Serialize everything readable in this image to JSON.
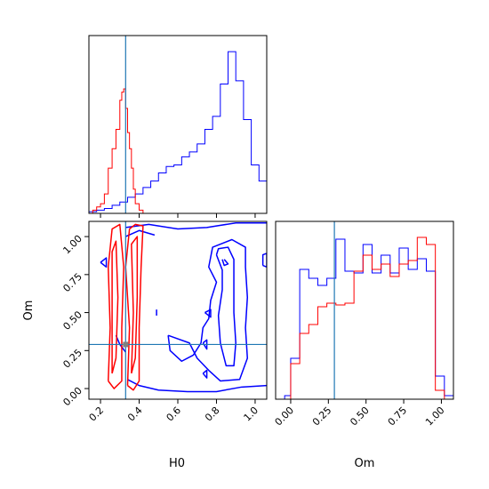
{
  "chart_data": {
    "type": "corner",
    "parameters": [
      "H0",
      "Om"
    ],
    "truths": {
      "H0": 0.33,
      "Om": 0.29
    },
    "truth_color": "#1f77b4",
    "series_colors": {
      "blue": "#0000ff",
      "red": "#ff0000"
    },
    "panels": {
      "hist_h0": {
        "xlim": [
          0.14,
          1.06
        ],
        "ylim": [
          0,
          1.1
        ],
        "series": [
          {
            "color": "#0000ff",
            "edges": [
              0.14,
              0.18,
              0.22,
              0.26,
              0.3,
              0.34,
              0.38,
              0.42,
              0.46,
              0.5,
              0.54,
              0.58,
              0.62,
              0.66,
              0.7,
              0.74,
              0.78,
              0.82,
              0.86,
              0.9,
              0.94,
              0.98,
              1.02,
              1.06
            ],
            "counts": [
              0.01,
              0.02,
              0.03,
              0.05,
              0.07,
              0.1,
              0.12,
              0.16,
              0.2,
              0.25,
              0.29,
              0.3,
              0.35,
              0.38,
              0.43,
              0.52,
              0.6,
              0.8,
              1.0,
              0.82,
              0.58,
              0.3,
              0.2
            ]
          },
          {
            "color": "#ff0000",
            "edges": [
              0.14,
              0.16,
              0.18,
              0.2,
              0.22,
              0.24,
              0.26,
              0.28,
              0.3,
              0.31,
              0.32,
              0.33,
              0.34,
              0.35,
              0.36,
              0.37,
              0.38,
              0.4,
              0.42,
              0.44
            ],
            "counts": [
              0.0,
              0.02,
              0.04,
              0.06,
              0.12,
              0.28,
              0.4,
              0.52,
              0.7,
              0.75,
              0.77,
              0.65,
              0.5,
              0.4,
              0.28,
              0.15,
              0.06,
              0.02,
              0.0
            ]
          }
        ]
      },
      "hist_om": {
        "xlim": [
          -0.1,
          1.08
        ],
        "ylim": [
          0,
          1.0
        ],
        "xticks": [
          0.0,
          0.25,
          0.5,
          0.75,
          1.0
        ],
        "xtick_labels": [
          "0.00",
          "0.25",
          "0.50",
          "0.75",
          "1.00"
        ],
        "series": [
          {
            "color": "#0000ff",
            "edges": [
              -0.04,
              0.0,
              0.06,
              0.12,
              0.18,
              0.24,
              0.3,
              0.36,
              0.42,
              0.48,
              0.54,
              0.6,
              0.66,
              0.72,
              0.78,
              0.84,
              0.9,
              0.96,
              1.02,
              1.08
            ],
            "counts": [
              0.02,
              0.23,
              0.73,
              0.68,
              0.64,
              0.68,
              0.9,
              0.72,
              0.71,
              0.87,
              0.71,
              0.81,
              0.71,
              0.85,
              0.73,
              0.79,
              0.72,
              0.13,
              0.02
            ]
          },
          {
            "color": "#ff0000",
            "edges": [
              0.0,
              0.06,
              0.12,
              0.18,
              0.24,
              0.3,
              0.36,
              0.42,
              0.48,
              0.54,
              0.6,
              0.66,
              0.72,
              0.78,
              0.84,
              0.9,
              0.96,
              1.02
            ],
            "counts": [
              0.2,
              0.37,
              0.42,
              0.52,
              0.54,
              0.53,
              0.54,
              0.72,
              0.81,
              0.73,
              0.76,
              0.69,
              0.76,
              0.78,
              0.91,
              0.87,
              0.05
            ]
          }
        ]
      },
      "contour_h0_om": {
        "xlim": [
          0.14,
          1.06
        ],
        "ylim": [
          -0.07,
          1.1
        ],
        "xticks": [
          0.2,
          0.4,
          0.6,
          0.8,
          1.0
        ],
        "xtick_labels": [
          "0.2",
          "0.4",
          "0.6",
          "0.8",
          "1.0"
        ],
        "yticks": [
          0.0,
          0.25,
          0.5,
          0.75,
          1.0
        ],
        "ytick_labels": [
          "0.00",
          "0.25",
          "0.50",
          "0.75",
          "1.00"
        ],
        "blue_contours": [
          [
            [
              0.33,
              1.06
            ],
            [
              0.45,
              1.08
            ],
            [
              0.6,
              1.05
            ],
            [
              0.75,
              1.06
            ],
            [
              0.9,
              1.09
            ],
            [
              1.06,
              1.09
            ]
          ],
          [
            [
              1.06,
              0.02
            ],
            [
              0.93,
              0.01
            ],
            [
              0.8,
              -0.02
            ],
            [
              0.65,
              -0.02
            ],
            [
              0.5,
              -0.01
            ],
            [
              0.4,
              0.02
            ],
            [
              0.34,
              0.06
            ]
          ],
          [
            [
              0.33,
              1.0
            ],
            [
              0.4,
              1.04
            ],
            [
              0.48,
              1.01
            ]
          ],
          [
            [
              0.28,
              0.35
            ],
            [
              0.3,
              0.29
            ],
            [
              0.33,
              0.24
            ]
          ],
          [
            [
              0.2,
              0.83
            ],
            [
              0.23,
              0.86
            ],
            [
              0.23,
              0.8
            ],
            [
              0.2,
              0.83
            ]
          ],
          [
            [
              0.55,
              0.35
            ],
            [
              0.66,
              0.3
            ],
            [
              0.7,
              0.2
            ],
            [
              0.76,
              0.12
            ],
            [
              0.82,
              0.05
            ],
            [
              0.92,
              0.06
            ],
            [
              0.96,
              0.2
            ],
            [
              0.95,
              0.4
            ],
            [
              0.96,
              0.6
            ],
            [
              0.95,
              0.8
            ],
            [
              0.95,
              0.93
            ],
            [
              0.88,
              0.98
            ],
            [
              0.78,
              0.93
            ],
            [
              0.76,
              0.8
            ],
            [
              0.8,
              0.7
            ],
            [
              0.77,
              0.58
            ],
            [
              0.76,
              0.46
            ],
            [
              0.73,
              0.4
            ],
            [
              0.72,
              0.3
            ],
            [
              0.68,
              0.22
            ],
            [
              0.62,
              0.18
            ],
            [
              0.56,
              0.25
            ],
            [
              0.55,
              0.35
            ]
          ],
          [
            [
              0.8,
              0.88
            ],
            [
              0.83,
              0.78
            ],
            [
              0.83,
              0.65
            ],
            [
              0.81,
              0.48
            ],
            [
              0.82,
              0.3
            ],
            [
              0.85,
              0.15
            ],
            [
              0.89,
              0.15
            ],
            [
              0.9,
              0.3
            ],
            [
              0.89,
              0.5
            ],
            [
              0.89,
              0.7
            ],
            [
              0.89,
              0.85
            ],
            [
              0.86,
              0.93
            ],
            [
              0.81,
              0.92
            ],
            [
              0.8,
              0.88
            ]
          ],
          [
            [
              0.83,
              0.85
            ],
            [
              0.84,
              0.81
            ],
            [
              0.86,
              0.82
            ],
            [
              0.84,
              0.85
            ]
          ],
          [
            [
              1.04,
              0.81
            ],
            [
              1.06,
              0.8
            ],
            [
              1.06,
              0.89
            ],
            [
              1.04,
              0.88
            ],
            [
              1.04,
              0.81
            ]
          ],
          [
            [
              0.49,
              0.52
            ],
            [
              0.49,
              0.48
            ]
          ],
          [
            [
              0.74,
              0.5
            ],
            [
              0.77,
              0.52
            ],
            [
              0.77,
              0.47
            ],
            [
              0.74,
              0.5
            ]
          ],
          [
            [
              0.73,
              0.3
            ],
            [
              0.75,
              0.32
            ],
            [
              0.75,
              0.26
            ],
            [
              0.73,
              0.3
            ]
          ],
          [
            [
              0.73,
              0.1
            ],
            [
              0.75,
              0.12
            ],
            [
              0.75,
              0.07
            ],
            [
              0.73,
              0.1
            ]
          ]
        ],
        "red_contours": [
          [
            [
              0.24,
              0.05
            ],
            [
              0.25,
              0.4
            ],
            [
              0.24,
              0.8
            ],
            [
              0.26,
              1.05
            ],
            [
              0.3,
              1.08
            ],
            [
              0.32,
              0.8
            ],
            [
              0.31,
              0.4
            ],
            [
              0.31,
              0.05
            ],
            [
              0.27,
              0.0
            ],
            [
              0.24,
              0.05
            ]
          ],
          [
            [
              0.34,
              0.02
            ],
            [
              0.35,
              0.4
            ],
            [
              0.33,
              0.8
            ],
            [
              0.35,
              1.05
            ],
            [
              0.38,
              1.08
            ],
            [
              0.42,
              1.07
            ],
            [
              0.41,
              0.8
            ],
            [
              0.4,
              0.4
            ],
            [
              0.4,
              0.05
            ],
            [
              0.37,
              -0.01
            ],
            [
              0.34,
              0.02
            ]
          ],
          [
            [
              0.26,
              0.1
            ],
            [
              0.26,
              0.5
            ],
            [
              0.26,
              0.9
            ],
            [
              0.28,
              0.97
            ],
            [
              0.29,
              0.6
            ],
            [
              0.28,
              0.2
            ],
            [
              0.26,
              0.1
            ]
          ],
          [
            [
              0.36,
              0.1
            ],
            [
              0.37,
              0.5
            ],
            [
              0.36,
              0.95
            ],
            [
              0.39,
              1.0
            ],
            [
              0.39,
              0.6
            ],
            [
              0.38,
              0.2
            ],
            [
              0.36,
              0.1
            ]
          ]
        ],
        "truth_marker": {
          "x": 0.33,
          "y": 0.29
        }
      }
    }
  },
  "axis_labels": {
    "h0": "H0",
    "om": "Om"
  },
  "tick_labels": {
    "contour_x": [
      "0.2",
      "0.4",
      "0.6",
      "0.8",
      "1.0"
    ],
    "contour_y": [
      "0.00",
      "0.25",
      "0.50",
      "0.75",
      "1.00"
    ],
    "om_x": [
      "0.00",
      "0.25",
      "0.50",
      "0.75",
      "1.00"
    ]
  }
}
